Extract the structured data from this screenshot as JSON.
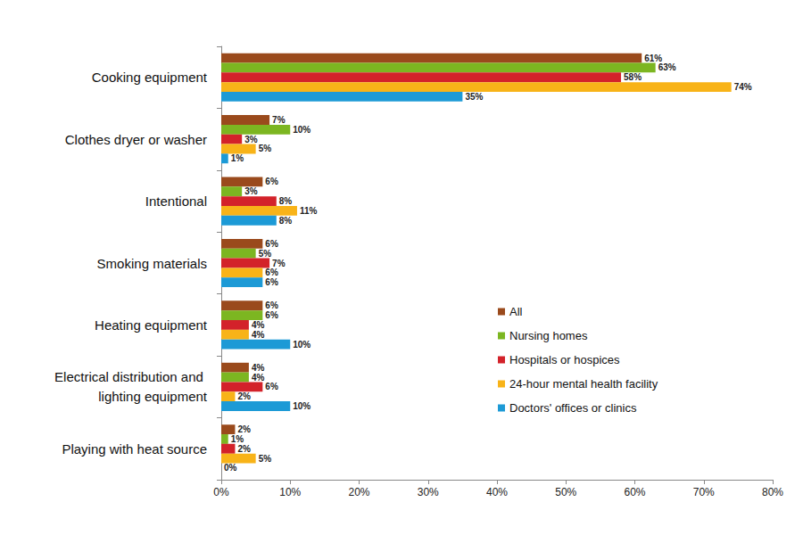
{
  "chart_data": {
    "type": "bar",
    "orientation": "horizontal",
    "categories": [
      "Cooking equipment",
      "Clothes dryer or washer",
      "Intentional",
      "Smoking materials",
      "Heating equipment",
      "Electrical distribution and lighting equipment",
      "Playing with heat source"
    ],
    "series": [
      {
        "name": "All",
        "color": "#9a4a1c",
        "values": [
          61,
          7,
          6,
          6,
          6,
          4,
          2
        ],
        "value_labels": [
          "61%",
          "7%",
          "6%",
          "6%",
          "6%",
          "4%",
          "2%"
        ]
      },
      {
        "name": "Nursing homes",
        "color": "#7cb621",
        "values": [
          63,
          10,
          3,
          5,
          6,
          4,
          1
        ],
        "value_labels": [
          "63%",
          "10%",
          "3%",
          "5%",
          "6%",
          "4%",
          "1%"
        ]
      },
      {
        "name": "Hospitals or hospices",
        "color": "#d3222a",
        "values": [
          58,
          3,
          8,
          7,
          4,
          6,
          2
        ],
        "value_labels": [
          "58%",
          "3%",
          "8%",
          "7%",
          "4%",
          "6%",
          "2%"
        ]
      },
      {
        "name": "24-hour mental health facility",
        "color": "#f8b318",
        "values": [
          74,
          5,
          11,
          6,
          4,
          2,
          5
        ],
        "value_labels": [
          "74%",
          "5%",
          "11%",
          "6%",
          "4%",
          "2%",
          "5%"
        ]
      },
      {
        "name": "Doctors' offices or clinics",
        "color": "#1d9ad6",
        "values": [
          35,
          1,
          8,
          6,
          10,
          10,
          0
        ],
        "value_labels": [
          "35%",
          "1%",
          "8%",
          "6%",
          "10%",
          "10%",
          "0%"
        ]
      }
    ],
    "xlim": [
      0,
      80
    ],
    "xticks": [
      {
        "value": 0,
        "label": "0%"
      },
      {
        "value": 10,
        "label": "10%"
      },
      {
        "value": 20,
        "label": "20%"
      },
      {
        "value": 30,
        "label": "30%"
      },
      {
        "value": 40,
        "label": "40%"
      },
      {
        "value": 50,
        "label": "50%"
      },
      {
        "value": 60,
        "label": "60%"
      },
      {
        "value": 70,
        "label": "70%"
      },
      {
        "value": 80,
        "label": "80%"
      }
    ],
    "data_labels": true,
    "legend": "right",
    "grid": false
  }
}
